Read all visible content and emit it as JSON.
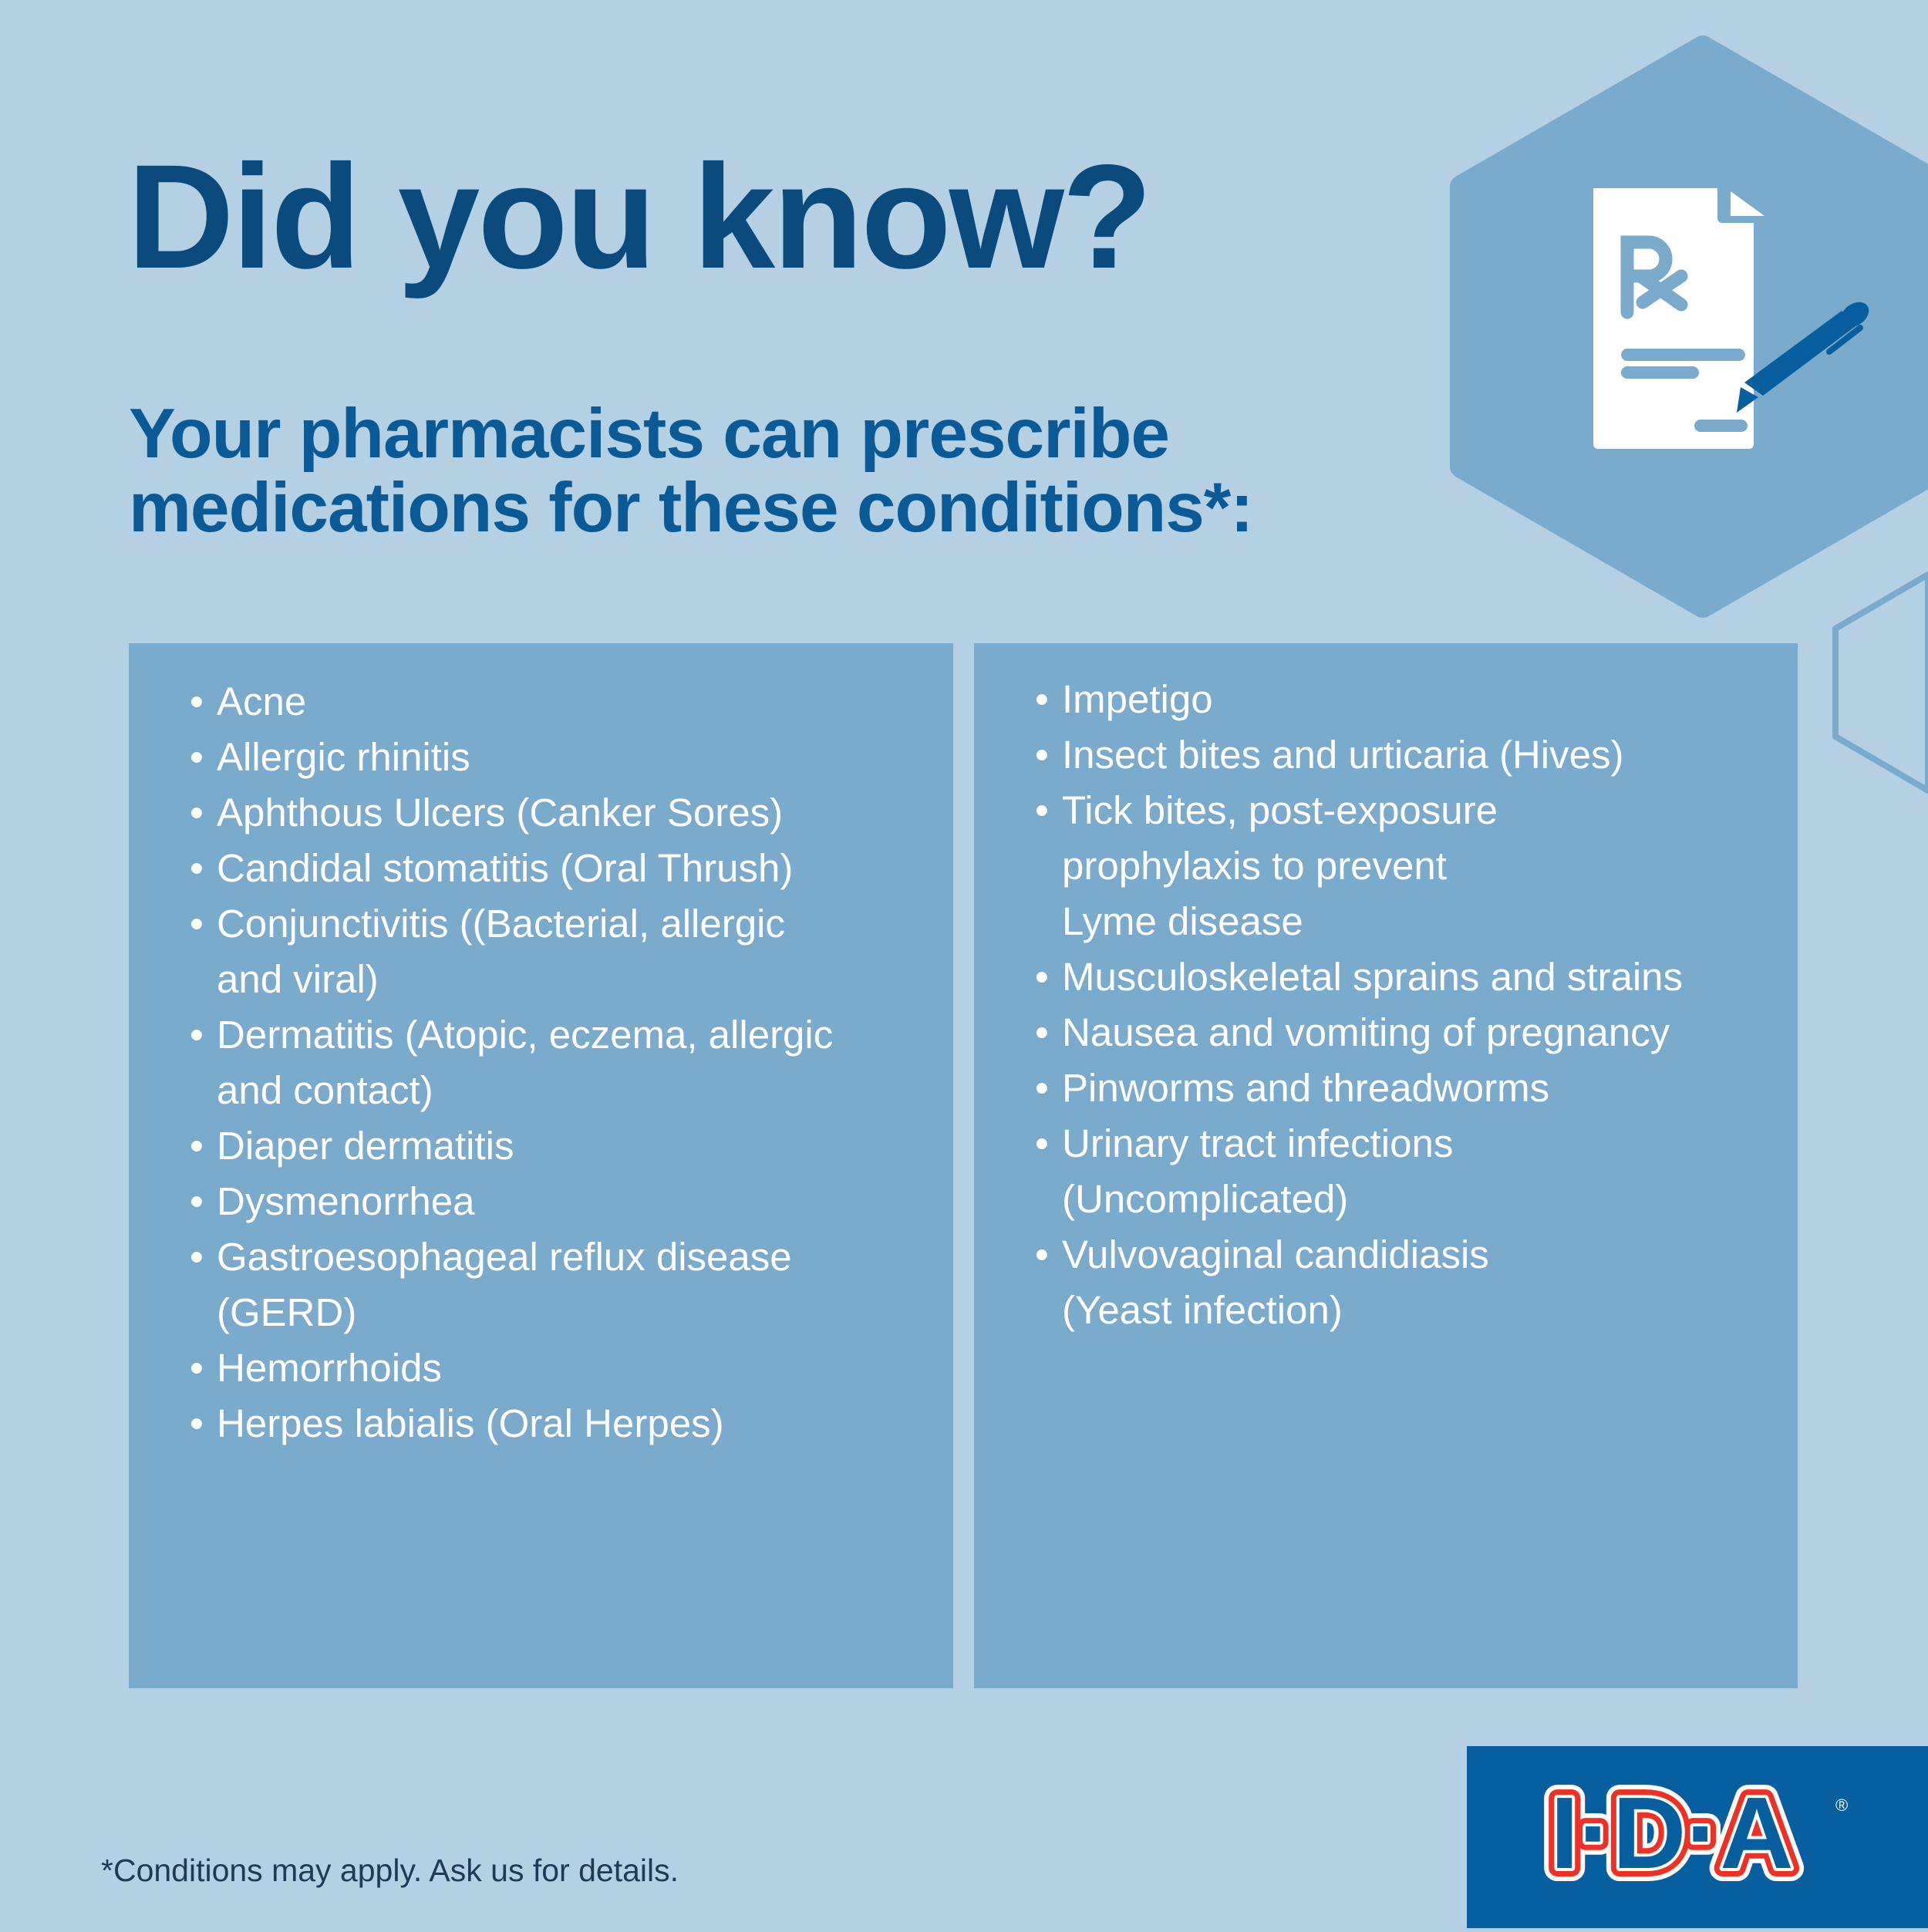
{
  "header": {
    "title": "Did you know?",
    "subtitle_lines": [
      "Your pharmacists can prescribe",
      "medications for these conditions*:"
    ]
  },
  "icon": {
    "name": "prescription-document-pen-icon",
    "rx": "Rx"
  },
  "left_column": {
    "items": [
      {
        "lines": [
          "Acne"
        ]
      },
      {
        "lines": [
          "Allergic rhinitis"
        ]
      },
      {
        "lines": [
          "Aphthous Ulcers (Canker Sores)"
        ]
      },
      {
        "lines": [
          "Candidal stomatitis (Oral Thrush)"
        ]
      },
      {
        "lines": [
          "Conjunctivitis ((Bacterial, allergic",
          "and viral)"
        ]
      },
      {
        "lines": [
          "Dermatitis (Atopic, eczema, allergic",
          "and contact)"
        ]
      },
      {
        "lines": [
          "Diaper dermatitis"
        ]
      },
      {
        "lines": [
          "Dysmenorrhea"
        ]
      },
      {
        "lines": [
          "Gastroesophageal reflux disease",
          "(GERD)"
        ]
      },
      {
        "lines": [
          "Hemorrhoids"
        ]
      },
      {
        "lines": [
          "Herpes labialis (Oral Herpes)"
        ]
      }
    ]
  },
  "right_column": {
    "items": [
      {
        "lines": [
          "Impetigo"
        ]
      },
      {
        "lines": [
          "Insect bites and urticaria (Hives)"
        ]
      },
      {
        "lines": [
          "Tick bites, post-exposure",
          "prophylaxis to prevent",
          "Lyme disease"
        ]
      },
      {
        "lines": [
          "Musculoskeletal sprains and strains"
        ]
      },
      {
        "lines": [
          "Nausea and vomiting of pregnancy"
        ]
      },
      {
        "lines": [
          "Pinworms and threadworms"
        ]
      },
      {
        "lines": [
          "Urinary tract infections",
          "(Uncomplicated)"
        ]
      },
      {
        "lines": [
          "Vulvovaginal candidiasis",
          "(Yeast infection)"
        ]
      }
    ]
  },
  "bullet": "•",
  "footnote": "*Conditions may apply. Ask us for details.",
  "logo": {
    "text": "I·D·A",
    "registered": "®"
  },
  "colors": {
    "background": "#b5d0e2",
    "panel": "#7aaacc",
    "title": "#0b4a7c",
    "subtitle": "#0b5a98",
    "brand_blue": "#075f9f",
    "brand_red": "#ee3124"
  }
}
